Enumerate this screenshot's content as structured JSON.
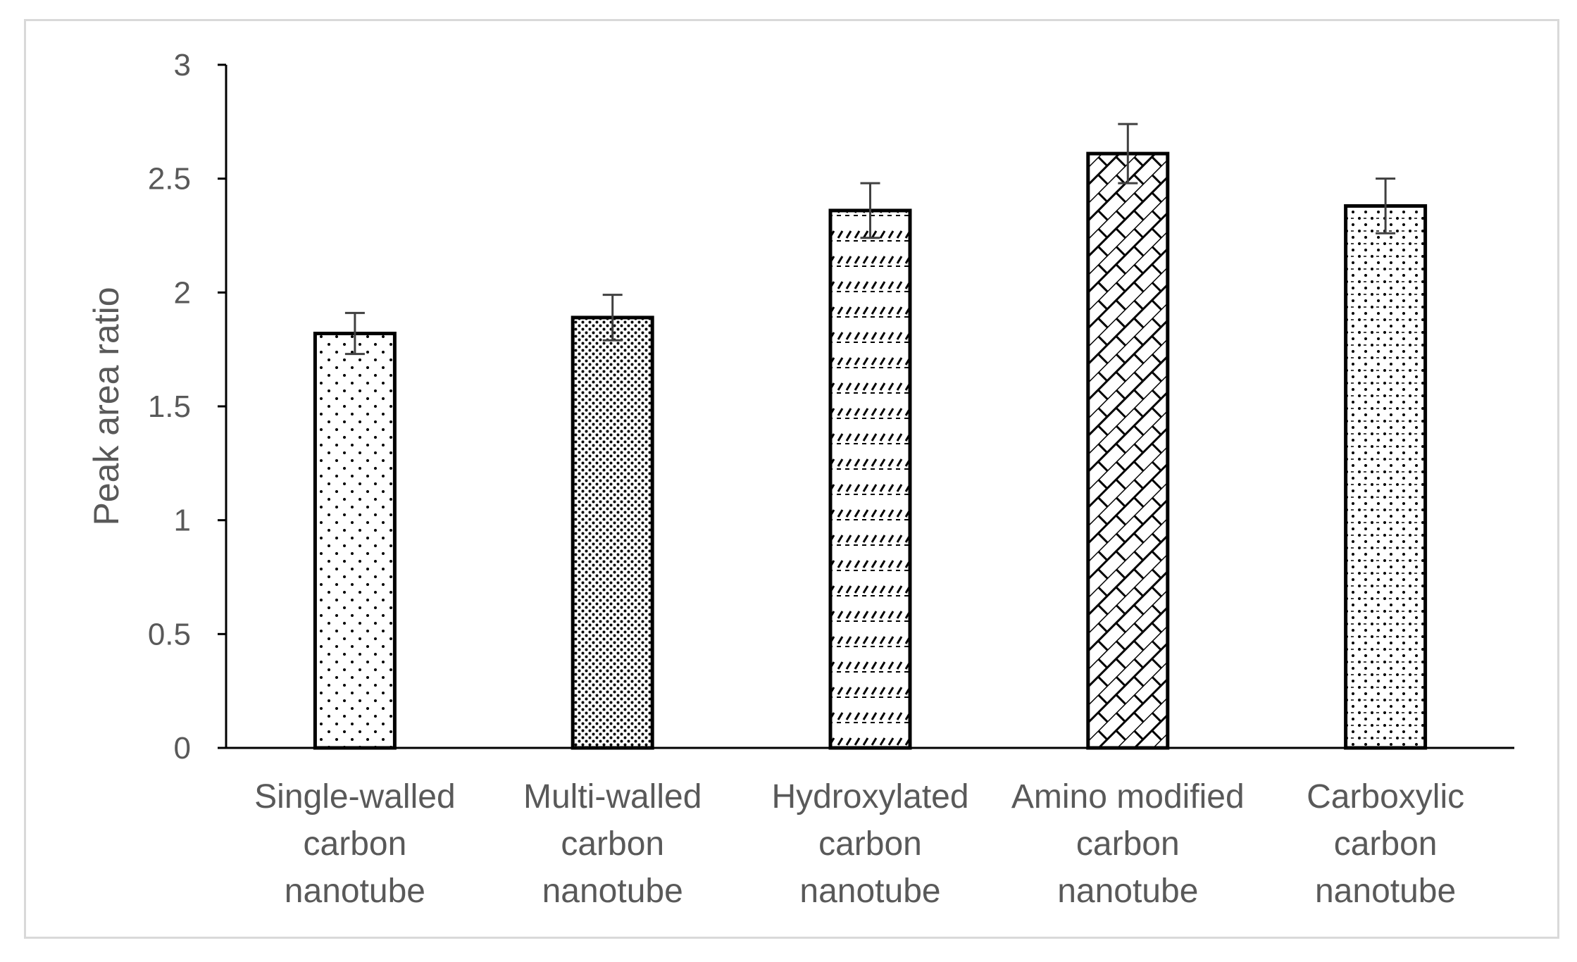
{
  "chart_data": {
    "type": "bar",
    "title": "",
    "xlabel": "",
    "ylabel": "Peak area ratio",
    "ylim": [
      0,
      3
    ],
    "yticks": [
      "0",
      "0.5",
      "1",
      "1.5",
      "2",
      "2.5",
      "3"
    ],
    "categories": [
      [
        "Single-walled",
        "carbon",
        "nanotube"
      ],
      [
        "Multi-walled",
        "carbon",
        "nanotube"
      ],
      [
        "Hydroxylated",
        "carbon",
        "nanotube"
      ],
      [
        "Amino modified",
        "carbon",
        "nanotube"
      ],
      [
        "Carboxylic",
        "carbon",
        "nanotube"
      ]
    ],
    "values": [
      1.82,
      1.89,
      2.36,
      2.61,
      2.38
    ],
    "errors": [
      0.09,
      0.1,
      0.12,
      0.13,
      0.12
    ],
    "patterns": [
      "sparse-dots",
      "dense-dots",
      "dashed-hatch",
      "diagonal-brick",
      "dots-dashes"
    ],
    "grid": false,
    "legend": "none",
    "colors": {
      "bar_fill": "#ffffff",
      "bar_outline": "#000000",
      "pattern": "#000000",
      "error_bar": "#404040",
      "text": "#595959"
    }
  }
}
